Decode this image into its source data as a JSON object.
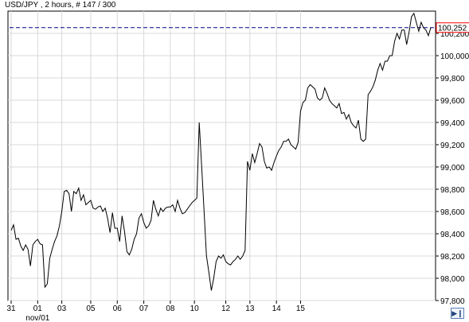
{
  "header": {
    "title": "USD/JPY , 2 hours, # 147 / 300"
  },
  "price_badge": "100,252",
  "scroll_button_icon": "scroll-to-end-icon",
  "colors": {
    "line": "#000000",
    "grid": "#d8d8d8",
    "hline": "#00008b",
    "badge": "#ff0000",
    "axis": "#000000"
  },
  "chart_data": {
    "type": "line",
    "title": "",
    "xlabel": "",
    "ylabel": "",
    "ylim": [
      97800,
      100400
    ],
    "grid": true,
    "y_ticks": [
      "97,800",
      "98,000",
      "98,200",
      "98,400",
      "98,600",
      "98,800",
      "99,000",
      "99,200",
      "99,400",
      "99,600",
      "99,800",
      "100,000",
      "100,200"
    ],
    "x_ticks": [
      {
        "label": "31",
        "i": 0
      },
      {
        "label": "01",
        "i": 11
      },
      {
        "label": "03",
        "i": 21
      },
      {
        "label": "05",
        "i": 33
      },
      {
        "label": "06",
        "i": 44
      },
      {
        "label": "07",
        "i": 55
      },
      {
        "label": "08",
        "i": 66
      },
      {
        "label": "10",
        "i": 76
      },
      {
        "label": "12",
        "i": 89
      },
      {
        "label": "13",
        "i": 99
      },
      {
        "label": "14",
        "i": 110
      },
      {
        "label": "15",
        "i": 120
      }
    ],
    "sub_label": {
      "label": "nov/01",
      "i": 11
    },
    "hline": 100252,
    "series": [
      {
        "values": [
          98430,
          98480,
          98350,
          98360,
          98290,
          98250,
          98300,
          98260,
          98110,
          98300,
          98330,
          98350,
          98310,
          98300,
          97920,
          97950,
          98180,
          98260,
          98330,
          98380,
          98470,
          98600,
          98780,
          98790,
          98760,
          98600,
          98780,
          98760,
          98810,
          98700,
          98750,
          98660,
          98680,
          98700,
          98630,
          98620,
          98640,
          98650,
          98600,
          98630,
          98540,
          98410,
          98590,
          98450,
          98450,
          98330,
          98560,
          98420,
          98240,
          98210,
          98260,
          98350,
          98400,
          98540,
          98580,
          98500,
          98450,
          98470,
          98520,
          98700,
          98620,
          98560,
          98630,
          98600,
          98630,
          98640,
          98640,
          98660,
          98600,
          98700,
          98630,
          98580,
          98590,
          98620,
          98650,
          98680,
          98700,
          98720,
          99400,
          99000,
          98600,
          98200,
          98050,
          97890,
          98000,
          98150,
          98200,
          98180,
          98210,
          98150,
          98130,
          98120,
          98150,
          98170,
          98200,
          98170,
          98200,
          98250,
          99050,
          98970,
          99120,
          99040,
          99120,
          99210,
          99180,
          99050,
          98990,
          99000,
          98970,
          99040,
          99100,
          99150,
          99180,
          99230,
          99230,
          99250,
          99200,
          99180,
          99160,
          99220,
          99500,
          99580,
          99600,
          99710,
          99740,
          99720,
          99700,
          99620,
          99600,
          99620,
          99710,
          99660,
          99600,
          99570,
          99550,
          99530,
          99570,
          99480,
          99490,
          99430,
          99470,
          99400,
          99370,
          99350,
          99420,
          99250,
          99230,
          99250,
          99650,
          99680,
          99720,
          99780,
          99870,
          99930,
          99870,
          99950,
          99950,
          100000,
          100000,
          100130,
          100200,
          100150,
          100230,
          100230,
          100100,
          100210,
          100350,
          100380,
          100300,
          100220,
          100300,
          100250,
          100230,
          100180,
          100250
        ]
      }
    ]
  }
}
